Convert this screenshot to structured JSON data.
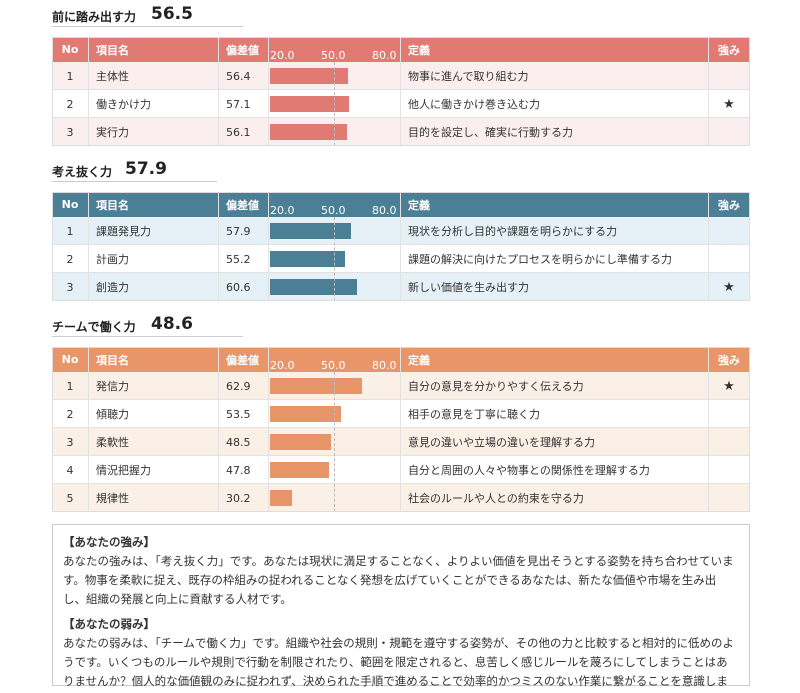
{
  "headers": [
    "No",
    "項目名",
    "偏差値",
    "定義",
    "強み"
  ],
  "scale": {
    "lim": [
      20,
      80
    ],
    "ticks": [
      {
        "value": 20,
        "label": "20.0"
      },
      {
        "value": 50,
        "label": "50.0"
      },
      {
        "value": 80,
        "label": "80.0"
      }
    ]
  },
  "sections": [
    {
      "title": "前に踏み出す力",
      "score": 56.5,
      "color": "#e07a73",
      "tint": "#fbeeee",
      "rows": [
        {
          "no": 1,
          "name": "主体性",
          "value": 56.4,
          "definition": "物事に進んで取り組む力"
        },
        {
          "no": 2,
          "name": "働きかけ力",
          "value": 57.1,
          "definition": "他人に働きかけ巻き込む力",
          "strength": "★"
        },
        {
          "no": 3,
          "name": "実行力",
          "value": 56.1,
          "definition": "目的を設定し、確実に行動する力"
        }
      ]
    },
    {
      "title": "考え抜く力",
      "score": 57.9,
      "color": "#4a7f96",
      "tint": "#e5f1f7",
      "rows": [
        {
          "no": 1,
          "name": "課題発見力",
          "value": 57.9,
          "definition": "現状を分析し目的や課題を明らかにする力"
        },
        {
          "no": 2,
          "name": "計画力",
          "value": 55.2,
          "definition": "課題の解決に向けたプロセスを明らかにし準備する力"
        },
        {
          "no": 3,
          "name": "創造力",
          "value": 60.6,
          "definition": "新しい価値を生み出す力",
          "strength": "★"
        }
      ]
    },
    {
      "title": "チームで働く力",
      "score": 48.6,
      "color": "#e8956a",
      "tint": "#fbf0e6",
      "rows": [
        {
          "no": 1,
          "name": "発信力",
          "value": 62.9,
          "definition": "自分の意見を分かりやすく伝える力",
          "strength": "★"
        },
        {
          "no": 2,
          "name": "傾聴力",
          "value": 53.5,
          "definition": "相手の意見を丁寧に聴く力"
        },
        {
          "no": 3,
          "name": "柔軟性",
          "value": 48.5,
          "definition": "意見の違いや立場の違いを理解する力"
        },
        {
          "no": 4,
          "name": "情況把握力",
          "value": 47.8,
          "definition": "自分と周囲の人々や物事との関係性を理解する力"
        },
        {
          "no": 5,
          "name": "規律性",
          "value": 30.2,
          "definition": "社会のルールや人との約束を守る力"
        }
      ]
    }
  ],
  "summary": [
    {
      "heading": "【あなたの強み】",
      "body": "あなたの強みは、「考え抜く力」です。あなたは現状に満足することなく、よりよい価値を見出そうとする姿勢を持ち合わせています。物事を柔軟に捉え、既存の枠組みの捉われることなく発想を広げていくことができるあなたは、新たな価値や市場を生み出し、組織の発展と向上に貢献する人材です。"
    },
    {
      "heading": "【あなたの弱み】",
      "body": "あなたの弱みは、「チームで働く力」です。組織や社会の規則・規範を遵守する姿勢が、その他の力と比較すると相対的に低めのようです。いくつものルールや規則で行動を制限されたり、範囲を限定されると、息苦しく感じルールを蔑ろにしてしまうことはありませんか？個人的な価値観のみに捉われず、決められた手順で進めることで効率的かつミスのない作業に繋がることを意識しましょう。"
    }
  ]
}
